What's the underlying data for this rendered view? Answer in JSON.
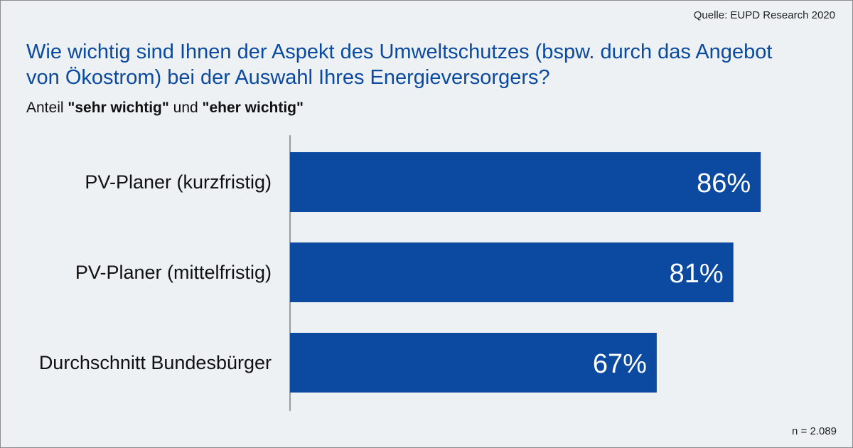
{
  "source": "Quelle: EUPD Research 2020",
  "title": "Wie wichtig sind Ihnen der Aspekt des Umweltschutzes (bspw. durch das Angebot von Ökostrom) bei der Auswahl Ihres Energieversorgers?",
  "subtitle": {
    "prefix": "Anteil ",
    "bold1": "\"sehr wichtig\"",
    "middle": " und ",
    "bold2": "\"eher wichtig\""
  },
  "footnote": "n = 2.089",
  "colors": {
    "bar": "#0b4aa0",
    "title": "#0a4aa0",
    "background": "#eef1f4",
    "axis": "#7f7f7f"
  },
  "chart_data": {
    "type": "bar",
    "orientation": "horizontal",
    "categories": [
      "PV-Planer (kurzfristig)",
      "PV-Planer (mittelfristig)",
      "Durchschnitt Bundesbürger"
    ],
    "values": [
      86,
      81,
      67
    ],
    "value_labels": [
      "86%",
      "81%",
      "67%"
    ],
    "unit": "%",
    "xlim": [
      0,
      100
    ],
    "grid": false,
    "legend": "none"
  }
}
